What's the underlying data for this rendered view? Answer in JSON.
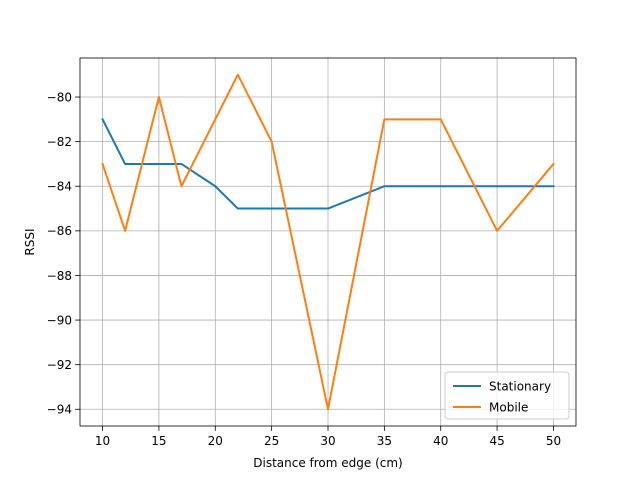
{
  "chart_data": {
    "type": "line",
    "title": "",
    "xlabel": "Distance from edge (cm)",
    "ylabel": "RSSI",
    "xlim": [
      8,
      52
    ],
    "ylim": [
      -94.75,
      -78.25
    ],
    "xticks": [
      10,
      15,
      20,
      25,
      30,
      35,
      40,
      45,
      50
    ],
    "xtick_labels": [
      "10",
      "15",
      "20",
      "25",
      "30",
      "35",
      "40",
      "45",
      "50"
    ],
    "yticks": [
      -94,
      -92,
      -90,
      -88,
      -86,
      -84,
      -82,
      -80
    ],
    "ytick_labels": [
      "−94",
      "−92",
      "−90",
      "−88",
      "−86",
      "−84",
      "−82",
      "−80"
    ],
    "grid": true,
    "legend_position": "lower-right",
    "series": [
      {
        "name": "Stationary",
        "color": "#1f77b4",
        "x": [
          10,
          12,
          15,
          17,
          20,
          22,
          25,
          30,
          35,
          40,
          45,
          50
        ],
        "y": [
          -81,
          -83,
          -83,
          -83,
          -84,
          -85,
          -85,
          -85,
          -84,
          -84,
          -84,
          -84
        ]
      },
      {
        "name": "Mobile",
        "color": "#ff7f0e",
        "x": [
          10,
          12,
          15,
          17,
          20,
          22,
          25,
          30,
          35,
          40,
          45,
          50
        ],
        "y": [
          -83,
          -86,
          -80,
          -84,
          -81,
          -79,
          -82,
          -94,
          -81,
          -81,
          -86,
          -83
        ]
      }
    ]
  }
}
